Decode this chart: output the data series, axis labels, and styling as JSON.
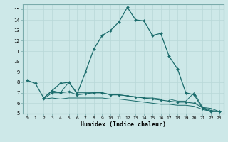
{
  "title": "",
  "xlabel": "Humidex (Indice chaleur)",
  "background_color": "#cde8e8",
  "grid_color": "#b8d8d8",
  "line_color": "#1a6b6b",
  "ylim": [
    5,
    15.5
  ],
  "xlim": [
    -0.5,
    23.5
  ],
  "yticks": [
    5,
    6,
    7,
    8,
    9,
    10,
    11,
    12,
    13,
    14,
    15
  ],
  "xticks": [
    0,
    1,
    2,
    3,
    4,
    5,
    6,
    7,
    8,
    9,
    10,
    11,
    12,
    13,
    14,
    15,
    16,
    17,
    18,
    19,
    20,
    21,
    22,
    23
  ],
  "line1_x": [
    0,
    1,
    2,
    3,
    4,
    5,
    6,
    7,
    8,
    9,
    10,
    11,
    12,
    13,
    14,
    15,
    16,
    17,
    18,
    19,
    20,
    21,
    22,
    23
  ],
  "line1_y": [
    8.2,
    7.9,
    6.5,
    7.2,
    7.9,
    8.0,
    6.9,
    9.0,
    11.2,
    12.5,
    13.0,
    13.8,
    15.2,
    14.0,
    13.9,
    12.5,
    12.7,
    10.5,
    9.3,
    7.0,
    6.8,
    5.5,
    5.2,
    5.2
  ],
  "line2_x": [
    2,
    3,
    4,
    5,
    6,
    7,
    8,
    9,
    10,
    11,
    12,
    13,
    14,
    15,
    16,
    17,
    18,
    19,
    20,
    21,
    22,
    23
  ],
  "line2_y": [
    6.4,
    7.0,
    7.0,
    7.1,
    6.8,
    6.9,
    7.0,
    7.0,
    6.8,
    6.8,
    6.7,
    6.6,
    6.5,
    6.4,
    6.3,
    6.2,
    6.1,
    6.1,
    6.0,
    5.6,
    5.3,
    5.2
  ],
  "line3_x": [
    2,
    3,
    4,
    5,
    6,
    7,
    8,
    9,
    10,
    11,
    12,
    13,
    14,
    15,
    16,
    17,
    18,
    19,
    20,
    21,
    22,
    23
  ],
  "line3_y": [
    6.4,
    6.5,
    6.4,
    6.5,
    6.5,
    6.5,
    6.5,
    6.5,
    6.4,
    6.4,
    6.3,
    6.2,
    6.1,
    6.0,
    5.9,
    5.9,
    5.8,
    5.8,
    5.7,
    5.4,
    5.2,
    5.2
  ],
  "line4_x": [
    2,
    3,
    4,
    5,
    6,
    7,
    8,
    9,
    10,
    11,
    12,
    13,
    14,
    15,
    16,
    17,
    18,
    19,
    20,
    21,
    22,
    23
  ],
  "line4_y": [
    6.5,
    7.2,
    7.0,
    8.0,
    7.0,
    7.0,
    7.0,
    7.0,
    6.8,
    6.8,
    6.7,
    6.6,
    6.5,
    6.5,
    6.4,
    6.4,
    6.2,
    6.2,
    7.0,
    5.6,
    5.5,
    5.2
  ]
}
